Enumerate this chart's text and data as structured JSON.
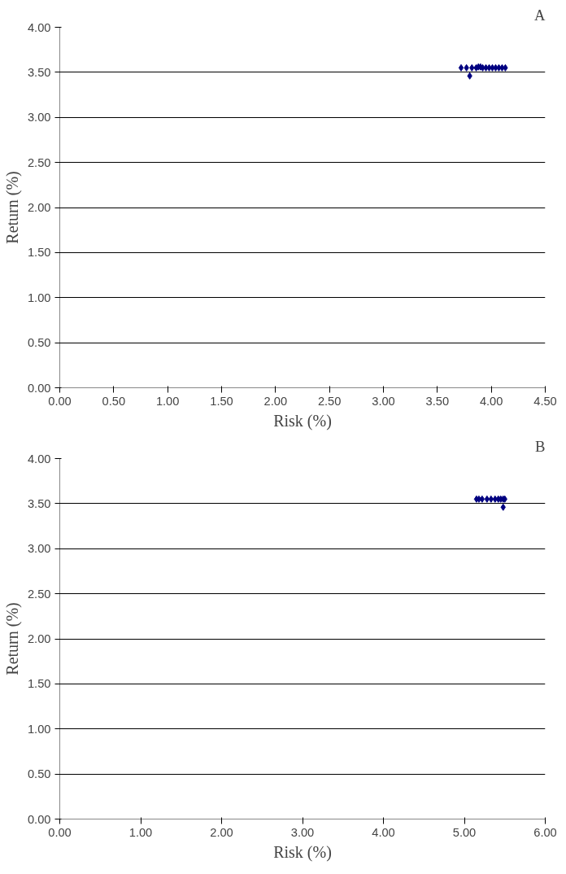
{
  "chart_data": [
    {
      "type": "scatter",
      "title": "A",
      "xlabel": "Risk (%)",
      "ylabel": "Return (%)",
      "marker": "diamond",
      "grid": "y",
      "series": [
        {
          "color": "#000080",
          "x": [
            3.72,
            3.77,
            3.8,
            3.82,
            3.86,
            3.88,
            3.9,
            3.92,
            3.95,
            3.98,
            4.01,
            4.04,
            4.07,
            4.1,
            4.13
          ],
          "values": [
            3.55,
            3.55,
            3.46,
            3.55,
            3.55,
            3.56,
            3.56,
            3.55,
            3.55,
            3.55,
            3.55,
            3.55,
            3.55,
            3.55,
            3.55
          ]
        }
      ],
      "xlim": [
        0,
        4.5
      ],
      "ylim": [
        0,
        4
      ],
      "xticks": [
        {
          "value": 0,
          "label": "0.00"
        },
        {
          "value": 0.5,
          "label": "0.50"
        },
        {
          "value": 1,
          "label": "1.00"
        },
        {
          "value": 1.5,
          "label": "1.50"
        },
        {
          "value": 2,
          "label": "2.00"
        },
        {
          "value": 2.5,
          "label": "2.50"
        },
        {
          "value": 3,
          "label": "3.00"
        },
        {
          "value": 3.5,
          "label": "3.50"
        },
        {
          "value": 4,
          "label": "4.00"
        },
        {
          "value": 4.5,
          "label": "4.50"
        }
      ],
      "yticks": [
        {
          "value": 0,
          "label": "0.00"
        },
        {
          "value": 0.5,
          "label": "0.50"
        },
        {
          "value": 1,
          "label": "1.00"
        },
        {
          "value": 1.5,
          "label": "1.50"
        },
        {
          "value": 2,
          "label": "2.00"
        },
        {
          "value": 2.5,
          "label": "2.50"
        },
        {
          "value": 3,
          "label": "3.00"
        },
        {
          "value": 3.5,
          "label": "3.50"
        },
        {
          "value": 4,
          "label": "4.00"
        }
      ]
    },
    {
      "type": "scatter",
      "title": "B",
      "xlabel": "Risk (%)",
      "ylabel": "Return (%)",
      "marker": "diamond",
      "grid": "y",
      "series": [
        {
          "color": "#000080",
          "x": [
            5.15,
            5.18,
            5.22,
            5.28,
            5.33,
            5.38,
            5.42,
            5.45,
            5.48,
            5.48,
            5.5
          ],
          "values": [
            3.55,
            3.55,
            3.55,
            3.55,
            3.55,
            3.55,
            3.55,
            3.55,
            3.55,
            3.46,
            3.55
          ]
        }
      ],
      "xlim": [
        0,
        6
      ],
      "ylim": [
        0,
        4
      ],
      "xticks": [
        {
          "value": 0,
          "label": "0.00"
        },
        {
          "value": 1,
          "label": "1.00"
        },
        {
          "value": 2,
          "label": "2.00"
        },
        {
          "value": 3,
          "label": "3.00"
        },
        {
          "value": 4,
          "label": "4.00"
        },
        {
          "value": 5,
          "label": "5.00"
        },
        {
          "value": 6,
          "label": "6.00"
        }
      ],
      "yticks": [
        {
          "value": 0,
          "label": "0.00"
        },
        {
          "value": 0.5,
          "label": "0.50"
        },
        {
          "value": 1,
          "label": "1.00"
        },
        {
          "value": 1.5,
          "label": "1.50"
        },
        {
          "value": 2,
          "label": "2.00"
        },
        {
          "value": 2.5,
          "label": "2.50"
        },
        {
          "value": 3,
          "label": "3.00"
        },
        {
          "value": 3.5,
          "label": "3.50"
        },
        {
          "value": 4,
          "label": "4.00"
        }
      ]
    }
  ]
}
